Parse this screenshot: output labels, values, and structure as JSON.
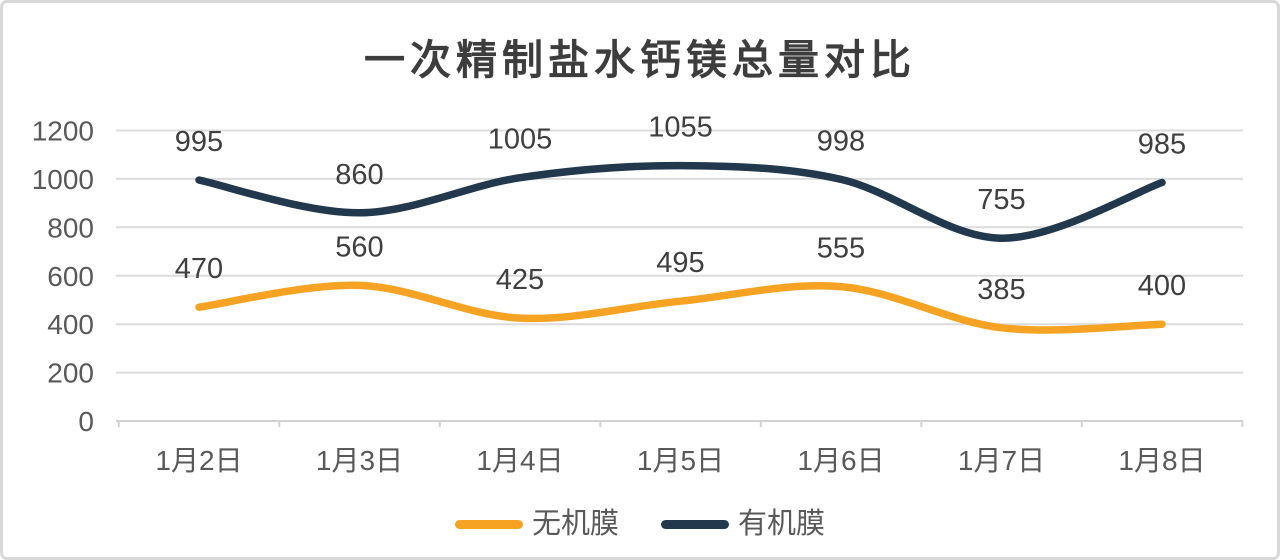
{
  "page": {
    "title": "一次精制盐水钙镁总量对比"
  },
  "chart_data": {
    "type": "line",
    "title": "一次精制盐水钙镁总量对比",
    "categories": [
      "1月2日",
      "1月3日",
      "1月4日",
      "1月5日",
      "1月6日",
      "1月7日",
      "1月8日"
    ],
    "series": [
      {
        "name": "无机膜",
        "color": "#F6A324",
        "values": [
          470,
          560,
          425,
          495,
          555,
          385,
          400
        ]
      },
      {
        "name": "有机膜",
        "color": "#21384D",
        "values": [
          995,
          860,
          1005,
          1055,
          998,
          755,
          985
        ]
      }
    ],
    "xlabel": "",
    "ylabel": "",
    "ylim": [
      0,
      1200
    ],
    "yticks": [
      0,
      200,
      400,
      600,
      800,
      1000,
      1200
    ],
    "grid": true,
    "smooth": true,
    "data_labels": true,
    "legend_position": "bottom"
  },
  "style": {
    "title_color": "#3d3d3d",
    "axis_label_color": "#595959",
    "data_label_color": "#3f3f3f",
    "gridline_color": "#dcdcdc",
    "axis_line_color": "#d2d2d2",
    "card_border_color": "#d8d8d8",
    "background_color": "#ffffff"
  }
}
